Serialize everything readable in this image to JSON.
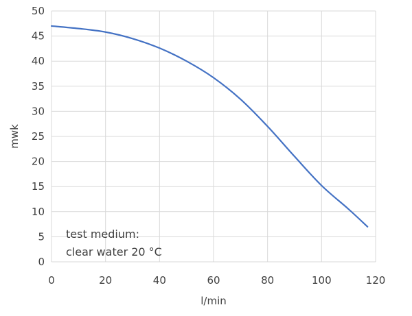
{
  "chart_data": {
    "type": "line",
    "title": "",
    "xlabel": "l/min",
    "ylabel": "mwk",
    "xlim": [
      0,
      120
    ],
    "ylim": [
      0,
      50
    ],
    "x_ticks": [
      0,
      20,
      40,
      60,
      80,
      100,
      120
    ],
    "y_ticks": [
      0,
      5,
      10,
      15,
      20,
      25,
      30,
      35,
      40,
      45,
      50
    ],
    "grid": true,
    "legend": "none",
    "series": [
      {
        "name": "",
        "color": "#4472c4",
        "x": [
          0,
          10,
          20,
          30,
          40,
          50,
          60,
          70,
          80,
          90,
          100,
          110,
          117
        ],
        "y": [
          47.0,
          46.5,
          45.8,
          44.5,
          42.6,
          40.0,
          36.7,
          32.4,
          27.0,
          21.0,
          15.2,
          10.5,
          7.0
        ]
      }
    ],
    "annotations": [
      "test medium:",
      "clear water 20 °C"
    ]
  }
}
